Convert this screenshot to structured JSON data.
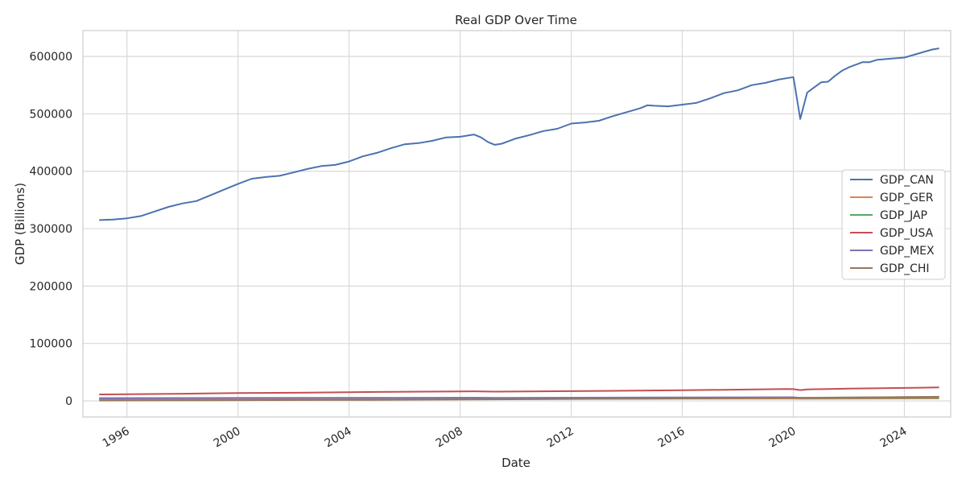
{
  "chart_data": {
    "type": "line",
    "title": "Real GDP Over Time",
    "xlabel": "Date",
    "ylabel": "GDP (Billions)",
    "xlim": [
      "1994-06-01",
      "2025-09-01"
    ],
    "ylim": [
      -28000,
      645000
    ],
    "x_ticks": [
      "1996",
      "2000",
      "2004",
      "2008",
      "2012",
      "2016",
      "2020",
      "2024"
    ],
    "y_ticks": [
      0,
      100000,
      200000,
      300000,
      400000,
      500000,
      600000
    ],
    "grid": true,
    "legend_position": "center-right",
    "colors": {
      "GDP_CAN": "#4c72b0",
      "GDP_GER": "#dd8452",
      "GDP_JAP": "#55a868",
      "GDP_USA": "#c44e52",
      "GDP_MEX": "#8172b3",
      "GDP_CHI": "#937860"
    },
    "series": [
      {
        "name": "GDP_CAN",
        "points": [
          [
            "1995-01-01",
            315000
          ],
          [
            "1995-07-01",
            316000
          ],
          [
            "1996-01-01",
            318000
          ],
          [
            "1996-07-01",
            322000
          ],
          [
            "1997-01-01",
            330000
          ],
          [
            "1997-07-01",
            338000
          ],
          [
            "1998-01-01",
            344000
          ],
          [
            "1998-07-01",
            348000
          ],
          [
            "1999-01-01",
            358000
          ],
          [
            "1999-07-01",
            368000
          ],
          [
            "2000-01-01",
            378000
          ],
          [
            "2000-07-01",
            387000
          ],
          [
            "2001-01-01",
            390000
          ],
          [
            "2001-07-01",
            392000
          ],
          [
            "2002-01-01",
            398000
          ],
          [
            "2002-07-01",
            404000
          ],
          [
            "2003-01-01",
            409000
          ],
          [
            "2003-07-01",
            411000
          ],
          [
            "2004-01-01",
            417000
          ],
          [
            "2004-07-01",
            426000
          ],
          [
            "2005-01-01",
            432000
          ],
          [
            "2005-07-01",
            440000
          ],
          [
            "2006-01-01",
            447000
          ],
          [
            "2006-07-01",
            449000
          ],
          [
            "2007-01-01",
            453000
          ],
          [
            "2007-07-01",
            459000
          ],
          [
            "2008-01-01",
            460000
          ],
          [
            "2008-04-01",
            462000
          ],
          [
            "2008-07-01",
            464000
          ],
          [
            "2008-10-01",
            459000
          ],
          [
            "2009-01-01",
            451000
          ],
          [
            "2009-04-01",
            446000
          ],
          [
            "2009-07-01",
            448000
          ],
          [
            "2010-01-01",
            457000
          ],
          [
            "2010-07-01",
            463000
          ],
          [
            "2011-01-01",
            470000
          ],
          [
            "2011-07-01",
            474000
          ],
          [
            "2012-01-01",
            483000
          ],
          [
            "2012-07-01",
            485000
          ],
          [
            "2013-01-01",
            488000
          ],
          [
            "2013-07-01",
            496000
          ],
          [
            "2014-01-01",
            503000
          ],
          [
            "2014-07-01",
            510000
          ],
          [
            "2014-10-01",
            515000
          ],
          [
            "2015-01-01",
            514000
          ],
          [
            "2015-07-01",
            513000
          ],
          [
            "2016-01-01",
            516000
          ],
          [
            "2016-07-01",
            519000
          ],
          [
            "2017-01-01",
            527000
          ],
          [
            "2017-07-01",
            536000
          ],
          [
            "2018-01-01",
            541000
          ],
          [
            "2018-07-01",
            550000
          ],
          [
            "2019-01-01",
            554000
          ],
          [
            "2019-07-01",
            560000
          ],
          [
            "2020-01-01",
            564000
          ],
          [
            "2020-01-15",
            554000
          ],
          [
            "2020-04-01",
            491000
          ],
          [
            "2020-07-01",
            537000
          ],
          [
            "2020-10-01",
            546000
          ],
          [
            "2021-01-01",
            555000
          ],
          [
            "2021-04-01",
            556000
          ],
          [
            "2021-07-01",
            566000
          ],
          [
            "2021-10-01",
            575000
          ],
          [
            "2022-01-01",
            581000
          ],
          [
            "2022-07-01",
            590000
          ],
          [
            "2022-10-01",
            590000
          ],
          [
            "2023-01-01",
            594000
          ],
          [
            "2023-07-01",
            596000
          ],
          [
            "2024-01-01",
            598000
          ],
          [
            "2024-07-01",
            605000
          ],
          [
            "2025-01-01",
            612000
          ],
          [
            "2025-04-01",
            614000
          ]
        ]
      },
      {
        "name": "GDP_GER",
        "points": [
          [
            "1995-01-01",
            2900
          ],
          [
            "2000-01-01",
            3200
          ],
          [
            "2005-01-01",
            3300
          ],
          [
            "2008-07-01",
            3600
          ],
          [
            "2009-04-01",
            3400
          ],
          [
            "2015-01-01",
            3800
          ],
          [
            "2020-01-01",
            4000
          ],
          [
            "2020-04-01",
            3700
          ],
          [
            "2025-04-01",
            4200
          ]
        ]
      },
      {
        "name": "GDP_JAP",
        "points": [
          [
            "1995-01-01",
            5000
          ],
          [
            "2000-01-01",
            5200
          ],
          [
            "2005-01-01",
            5300
          ],
          [
            "2008-07-01",
            5400
          ],
          [
            "2009-04-01",
            5100
          ],
          [
            "2015-01-01",
            5400
          ],
          [
            "2020-01-01",
            5500
          ],
          [
            "2020-04-01",
            5100
          ],
          [
            "2025-04-01",
            5600
          ]
        ]
      },
      {
        "name": "GDP_USA",
        "points": [
          [
            "1995-01-01",
            11300
          ],
          [
            "1998-01-01",
            12500
          ],
          [
            "2000-01-01",
            13800
          ],
          [
            "2002-01-01",
            14200
          ],
          [
            "2005-01-01",
            15600
          ],
          [
            "2008-01-01",
            16600
          ],
          [
            "2008-07-01",
            16700
          ],
          [
            "2009-04-01",
            16100
          ],
          [
            "2012-01-01",
            17000
          ],
          [
            "2016-01-01",
            18600
          ],
          [
            "2019-10-01",
            20600
          ],
          [
            "2020-01-01",
            20500
          ],
          [
            "2020-04-01",
            18800
          ],
          [
            "2020-07-01",
            20100
          ],
          [
            "2022-01-01",
            21500
          ],
          [
            "2025-04-01",
            23500
          ]
        ]
      },
      {
        "name": "GDP_MEX",
        "points": [
          [
            "1995-01-01",
            4200
          ],
          [
            "2000-01-01",
            4900
          ],
          [
            "2005-01-01",
            5200
          ],
          [
            "2008-07-01",
            5700
          ],
          [
            "2009-04-01",
            5200
          ],
          [
            "2015-01-01",
            6100
          ],
          [
            "2020-01-01",
            6400
          ],
          [
            "2020-04-01",
            5200
          ],
          [
            "2025-04-01",
            6900
          ]
        ]
      },
      {
        "name": "GDP_CHI",
        "points": [
          [
            "1995-01-01",
            800
          ],
          [
            "2005-01-01",
            1900
          ],
          [
            "2015-01-01",
            4000
          ],
          [
            "2020-01-01",
            5500
          ],
          [
            "2020-04-01",
            5300
          ],
          [
            "2025-04-01",
            7200
          ]
        ]
      }
    ]
  }
}
